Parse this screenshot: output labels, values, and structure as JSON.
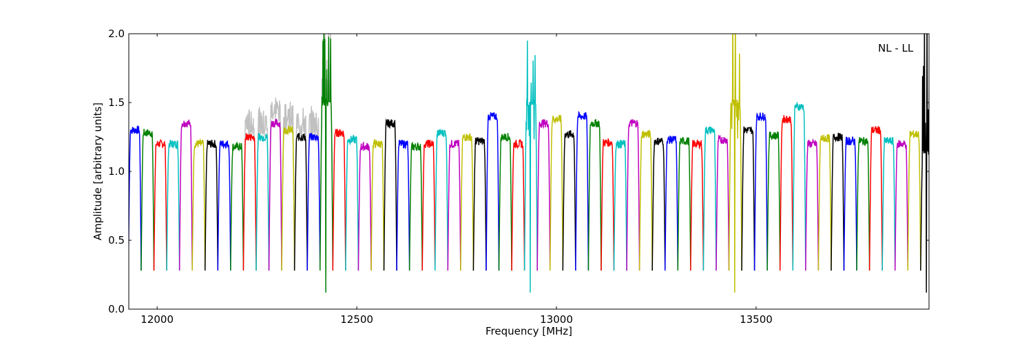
{
  "chart_data": {
    "type": "line",
    "title": "",
    "annotation": "NL - LL",
    "xlabel": "Frequency [MHz]",
    "ylabel": "Amplitude [arbitrary units]",
    "xlim": [
      11929,
      13933
    ],
    "ylim": [
      0.0,
      2.0
    ],
    "xticks": [
      12000,
      12500,
      13000,
      13500
    ],
    "xtick_labels": [
      "12000",
      "12500",
      "13000",
      "13500"
    ],
    "yticks": [
      0.0,
      0.5,
      1.0,
      1.5,
      2.0
    ],
    "ytick_labels": [
      "0.0",
      "0.5",
      "1.0",
      "1.5",
      "2.0"
    ],
    "grid": false,
    "series_colors": [
      "#0000ff",
      "#008000",
      "#ff0000",
      "#00bfbf",
      "#bf00bf",
      "#bfbf00",
      "#000000"
    ],
    "reference_color": "#c0c0c0",
    "subband_start_mhz": 11928,
    "subband_width_mhz": 32,
    "subband_edge_level": 0.28,
    "subband_plateau_levels": [
      1.3,
      1.28,
      1.2,
      1.2,
      1.35,
      1.2,
      1.2,
      1.2,
      1.18,
      1.25,
      1.25,
      1.35,
      1.3,
      1.25,
      1.25,
      1.5,
      1.28,
      1.23,
      1.18,
      1.2,
      1.35,
      1.2,
      1.18,
      1.2,
      1.28,
      1.2,
      1.25,
      1.22,
      1.4,
      1.25,
      1.2,
      1.5,
      1.35,
      1.38,
      1.27,
      1.4,
      1.35,
      1.21,
      1.2,
      1.35,
      1.27,
      1.22,
      1.23,
      1.22,
      1.2,
      1.3,
      1.23,
      1.5,
      1.3,
      1.4,
      1.26,
      1.38,
      1.47,
      1.2,
      1.24,
      1.25,
      1.22,
      1.22,
      1.3,
      1.22,
      1.2,
      1.27,
      1.15,
      1.3
    ],
    "rfi_subbands": [
      15,
      31,
      47,
      62,
      63
    ]
  }
}
